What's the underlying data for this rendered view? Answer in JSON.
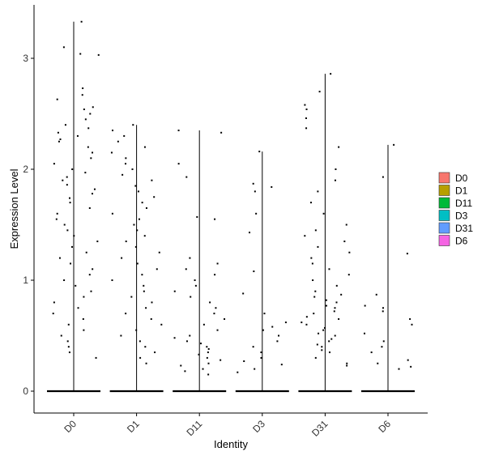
{
  "chart_data": {
    "type": "scatter",
    "subtype": "violin-jitter",
    "xlabel": "Identity",
    "ylabel": "Expression Level",
    "categories": [
      "D0",
      "D1",
      "D11",
      "D3",
      "D31",
      "D6"
    ],
    "ylim": [
      -0.2,
      3.45
    ],
    "yticks": [
      0,
      1,
      2,
      3
    ],
    "grid": false,
    "legend": {
      "placement": "right",
      "entries": [
        {
          "label": "D0",
          "color": "#F8766D"
        },
        {
          "label": "D1",
          "color": "#B79F00"
        },
        {
          "label": "D11",
          "color": "#00BA38"
        },
        {
          "label": "D3",
          "color": "#00BFC4"
        },
        {
          "label": "D31",
          "color": "#619CFF"
        },
        {
          "label": "D6",
          "color": "#F564E3"
        }
      ]
    },
    "violin_max": {
      "D0": 3.33,
      "D1": 2.4,
      "D11": 2.35,
      "D3": 2.16,
      "D31": 2.86,
      "D6": 2.22
    },
    "point_color": "#000000",
    "series": [
      {
        "values": [
          3.33,
          3.1,
          3.04,
          3.03,
          2.73,
          2.67,
          2.63,
          2.56,
          2.54,
          2.5,
          2.45,
          2.4,
          2.37,
          2.33,
          2.3,
          2.27,
          2.25,
          2.2,
          2.15,
          2.1,
          2.05,
          2.0,
          1.97,
          1.93,
          1.9,
          1.86,
          1.82,
          1.78,
          1.74,
          1.7,
          1.65,
          1.6,
          1.55,
          1.5,
          1.45,
          1.4,
          1.35,
          1.3,
          1.25,
          1.2,
          1.15,
          1.1,
          1.05,
          1.0,
          0.95,
          0.9,
          0.85,
          0.8,
          0.75,
          0.7,
          0.65,
          0.6,
          0.55,
          0.5,
          0.45,
          0.4,
          0.35,
          0.3
        ]
      },
      {
        "values": [
          2.4,
          2.35,
          2.3,
          2.25,
          2.2,
          2.15,
          2.1,
          2.05,
          2.0,
          1.95,
          1.9,
          1.85,
          1.8,
          1.75,
          1.7,
          1.65,
          1.6,
          1.55,
          1.5,
          1.45,
          1.4,
          1.35,
          1.3,
          1.25,
          1.2,
          1.15,
          1.1,
          1.05,
          1.0,
          0.95,
          0.9,
          0.85,
          0.8,
          0.75,
          0.7,
          0.65,
          0.6,
          0.55,
          0.5,
          0.45,
          0.4,
          0.35,
          0.3,
          0.25
        ]
      },
      {
        "values": [
          2.35,
          2.33,
          2.05,
          1.93,
          1.57,
          1.55,
          1.2,
          1.15,
          1.1,
          1.05,
          1.0,
          0.95,
          0.9,
          0.85,
          0.8,
          0.75,
          0.7,
          0.65,
          0.6,
          0.55,
          0.5,
          0.48,
          0.45,
          0.43,
          0.4,
          0.38,
          0.35,
          0.33,
          0.3,
          0.28,
          0.25,
          0.23,
          0.2,
          0.18,
          0.15
        ]
      },
      {
        "values": [
          2.16,
          1.87,
          1.84,
          1.8,
          1.6,
          1.43,
          1.08,
          0.88,
          0.7,
          0.62,
          0.58,
          0.55,
          0.5,
          0.45,
          0.4,
          0.35,
          0.3,
          0.27,
          0.24,
          0.2,
          0.17
        ]
      },
      {
        "values": [
          2.86,
          2.7,
          2.58,
          2.54,
          2.46,
          2.37,
          2.2,
          2.0,
          1.9,
          1.8,
          1.7,
          1.6,
          1.5,
          1.45,
          1.4,
          1.35,
          1.3,
          1.25,
          1.2,
          1.15,
          1.1,
          1.05,
          1.0,
          0.95,
          0.9,
          0.87,
          0.85,
          0.82,
          0.8,
          0.77,
          0.75,
          0.72,
          0.7,
          0.67,
          0.65,
          0.62,
          0.6,
          0.57,
          0.55,
          0.52,
          0.5,
          0.47,
          0.45,
          0.42,
          0.4,
          0.37,
          0.35,
          0.3,
          0.25,
          0.23
        ]
      },
      {
        "values": [
          2.22,
          1.93,
          1.24,
          0.87,
          0.77,
          0.75,
          0.72,
          0.65,
          0.6,
          0.52,
          0.45,
          0.4,
          0.35,
          0.28,
          0.25,
          0.22,
          0.2
        ]
      }
    ]
  }
}
